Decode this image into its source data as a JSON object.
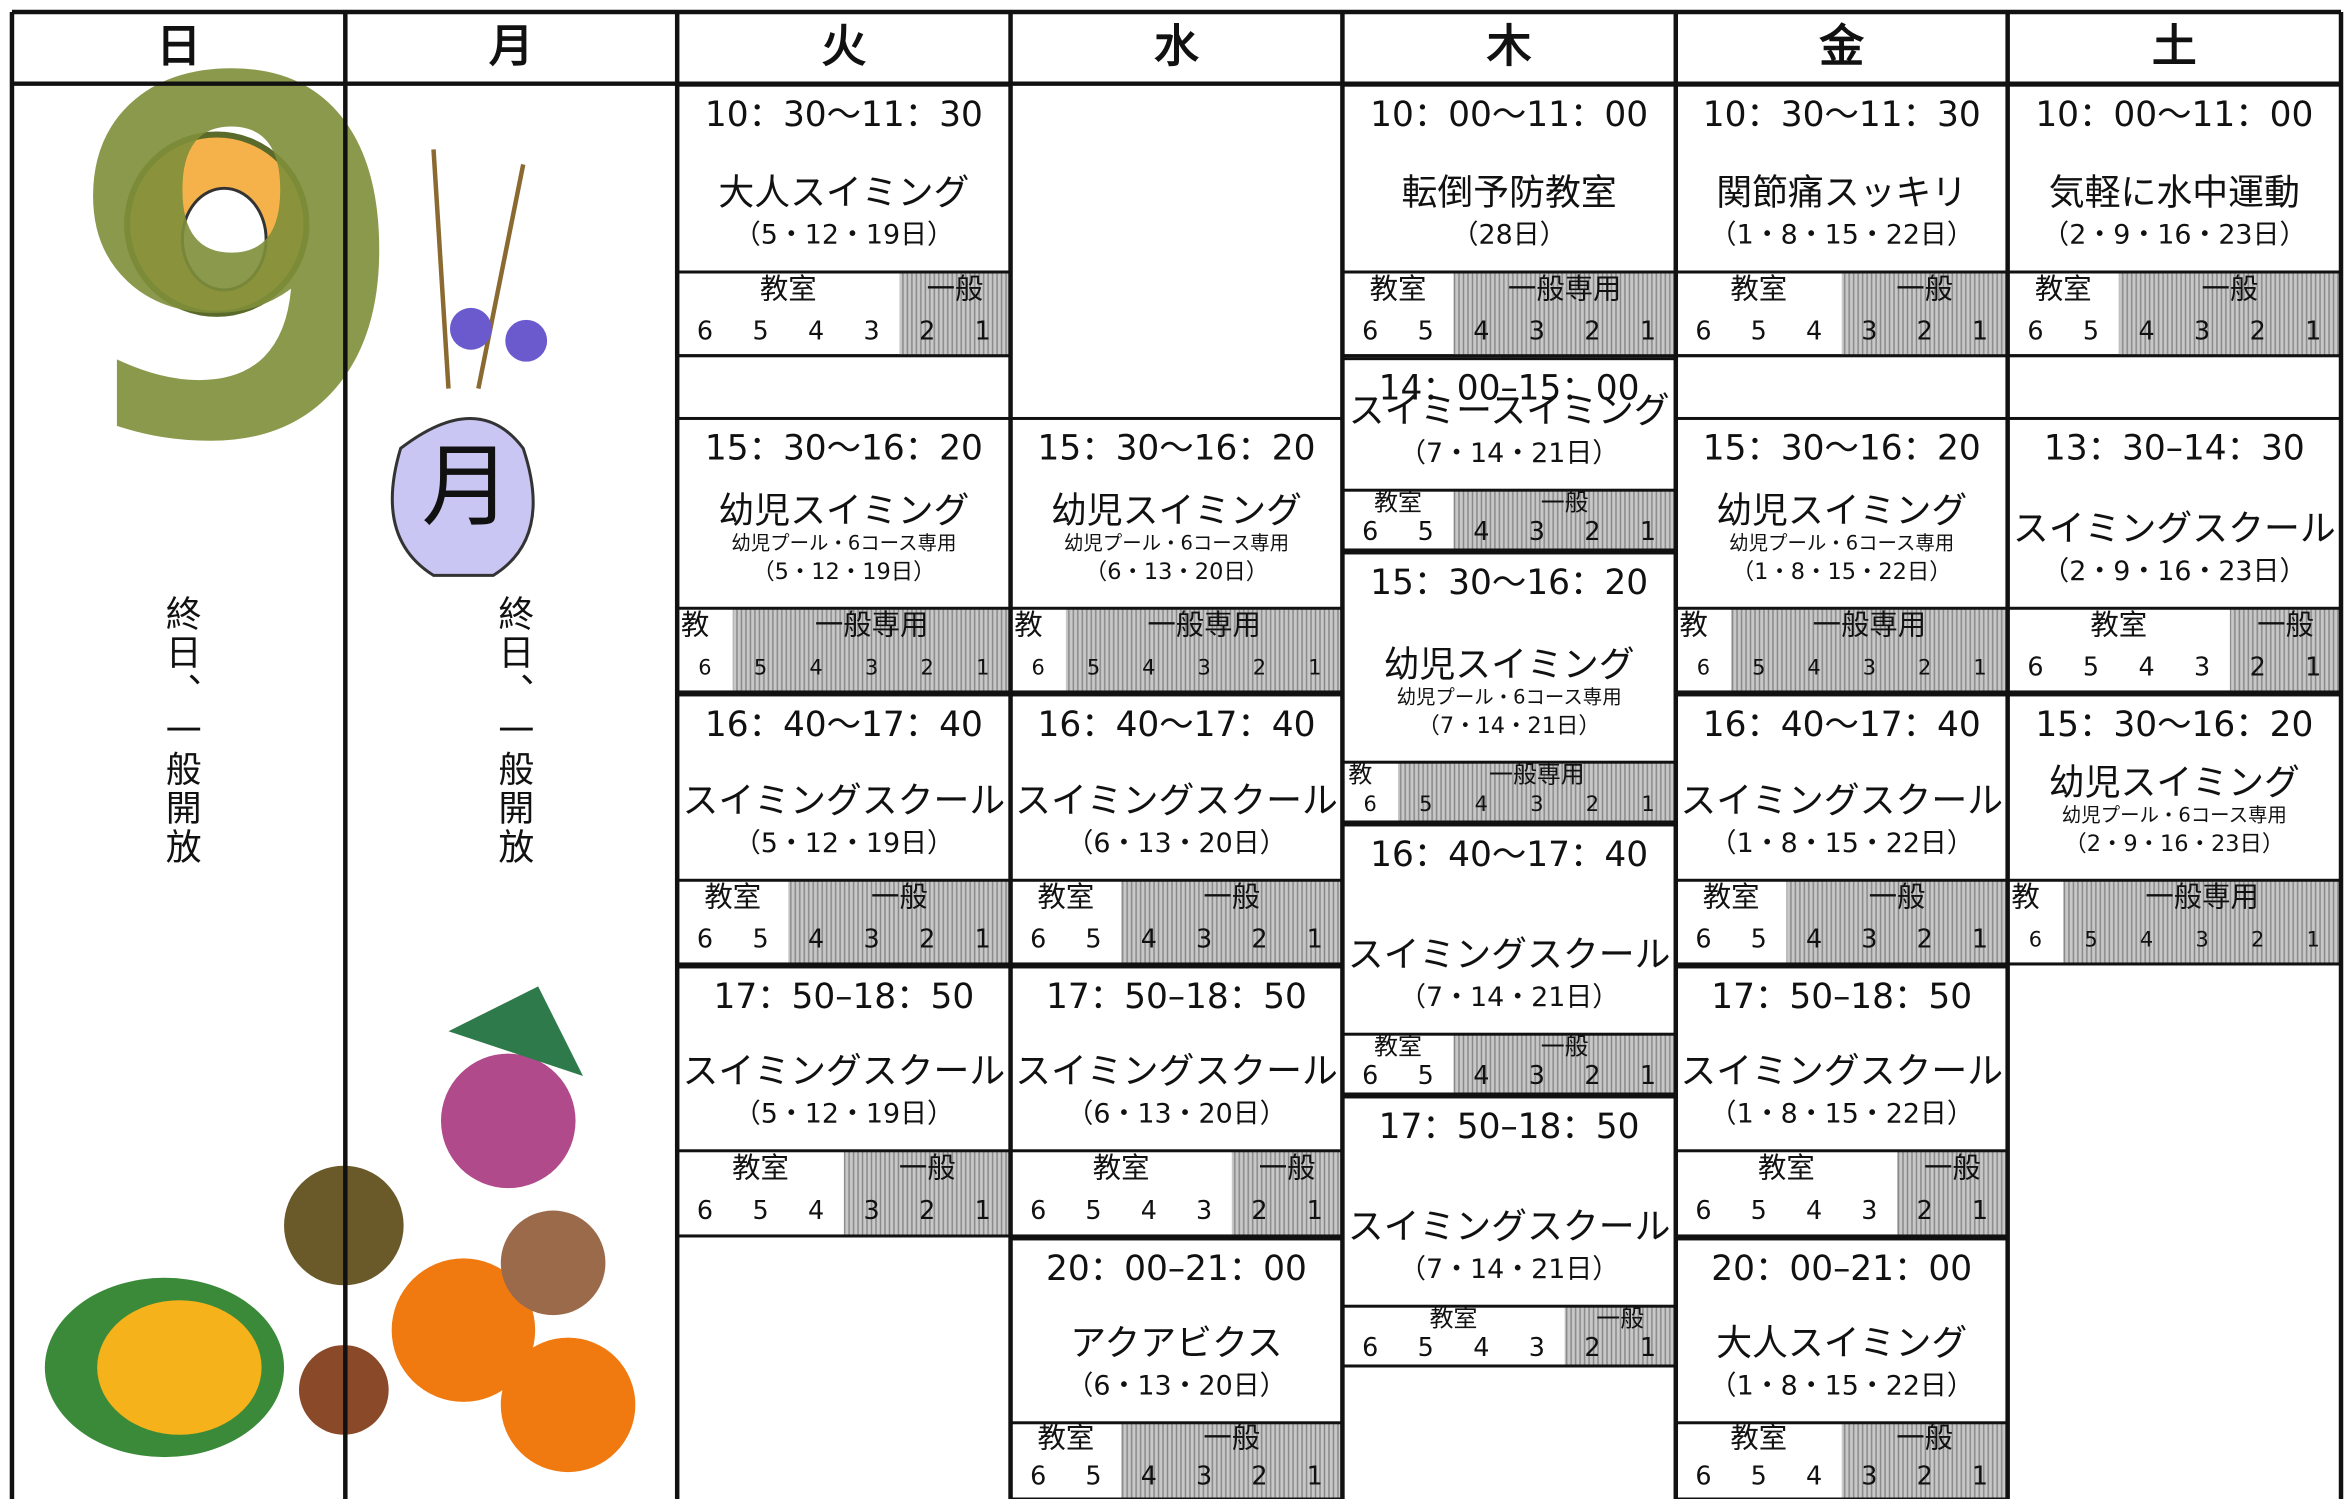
{
  "header": {
    "days": [
      "日",
      "月",
      "火",
      "水",
      "木",
      "金",
      "土"
    ]
  },
  "month": {
    "number": "9",
    "kanji": "月"
  },
  "lane_numbers": [
    6,
    5,
    4,
    3,
    2,
    1
  ],
  "columns": [
    {
      "note": "終日、一般開放"
    },
    {
      "note": "終日、一般開放"
    },
    {
      "sessions": [
        {
          "time": "10：30～11：30",
          "title": "大人スイミング",
          "dates": "（5・12・19日）",
          "left_label": "教室",
          "right_label": "一般"
        },
        {
          "time": "15：30～16：20",
          "title": "幼児スイミング",
          "subtitle": "幼児プール・6コース専用",
          "dates": "（5・12・19日）",
          "left_label": "教",
          "right_label": "一般専用"
        },
        {
          "time": "16：40～17：40",
          "title": "スイミングスクール",
          "dates": "（5・12・19日）",
          "left_label": "教室",
          "right_label": "一般"
        },
        {
          "time": "17：50–18：50",
          "title": "スイミングスクール",
          "dates": "（5・12・19日）",
          "left_label": "教室",
          "right_label": "一般"
        }
      ]
    },
    {
      "sessions": [
        {
          "time": "15：30～16：20",
          "title": "幼児スイミング",
          "subtitle": "幼児プール・6コース専用",
          "dates": "（6・13・20日）",
          "left_label": "教",
          "right_label": "一般専用"
        },
        {
          "time": "16：40～17：40",
          "title": "スイミングスクール",
          "dates": "（6・13・20日）",
          "left_label": "教室",
          "right_label": "一般"
        },
        {
          "time": "17：50–18：50",
          "title": "スイミングスクール",
          "dates": "（6・13・20日）",
          "left_label": "教室",
          "right_label": "一般"
        },
        {
          "time": "20：00–21：00",
          "title": "アクアビクス",
          "dates": "（6・13・20日）",
          "left_label": "教室",
          "right_label": "一般"
        }
      ]
    },
    {
      "sessions": [
        {
          "time": "10：00～11：00",
          "title": "転倒予防教室",
          "dates": "（28日）",
          "left_label": "教室",
          "right_label": "一般専用"
        },
        {
          "time": "14：00–15：00",
          "title": "スイミースイミング",
          "dates": "（7・14・21日）",
          "left_label": "教室",
          "right_label": "一般"
        },
        {
          "time": "15：30～16：20",
          "title": "幼児スイミング",
          "subtitle": "幼児プール・6コース専用",
          "dates": "（7・14・21日）",
          "left_label": "教",
          "right_label": "一般専用"
        },
        {
          "time": "16：40～17：40",
          "title": "スイミングスクール",
          "dates": "（7・14・21日）",
          "left_label": "教室",
          "right_label": "一般"
        },
        {
          "time": "17：50–18：50",
          "title": "スイミングスクール",
          "dates": "（7・14・21日）",
          "left_label": "教室",
          "right_label": "一般"
        }
      ]
    },
    {
      "sessions": [
        {
          "time": "10：30～11：30",
          "title": "関節痛スッキリ",
          "dates": "（1・8・15・22日）",
          "left_label": "教室",
          "right_label": "一般"
        },
        {
          "time": "15：30～16：20",
          "title": "幼児スイミング",
          "subtitle": "幼児プール・6コース専用",
          "dates": "（1・8・15・22日）",
          "left_label": "教",
          "right_label": "一般専用"
        },
        {
          "time": "16：40～17：40",
          "title": "スイミングスクール",
          "dates": "（1・8・15・22日）",
          "left_label": "教室",
          "right_label": "一般"
        },
        {
          "time": "17：50–18：50",
          "title": "スイミングスクール",
          "dates": "（1・8・15・22日）",
          "left_label": "教室",
          "right_label": "一般"
        },
        {
          "time": "20：00–21：00",
          "title": "大人スイミング",
          "dates": "（1・8・15・22日）",
          "left_label": "教室",
          "right_label": "一般"
        }
      ]
    },
    {
      "sessions": [
        {
          "time": "10：00～11：00",
          "title": "気軽に水中運動",
          "dates": "（2・9・16・23日）",
          "left_label": "教室",
          "right_label": "一般"
        },
        {
          "time": "13：30–14：30",
          "title": "スイミングスクール",
          "dates": "（2・9・16・23日）",
          "left_label": "教室",
          "right_label": "一般"
        },
        {
          "time": "15：30～16：20",
          "title": "幼児スイミング",
          "subtitle": "幼児プール・6コース専用",
          "dates": "（2・9・16・23日）",
          "left_label": "教",
          "right_label": "一般専用"
        }
      ]
    }
  ]
}
